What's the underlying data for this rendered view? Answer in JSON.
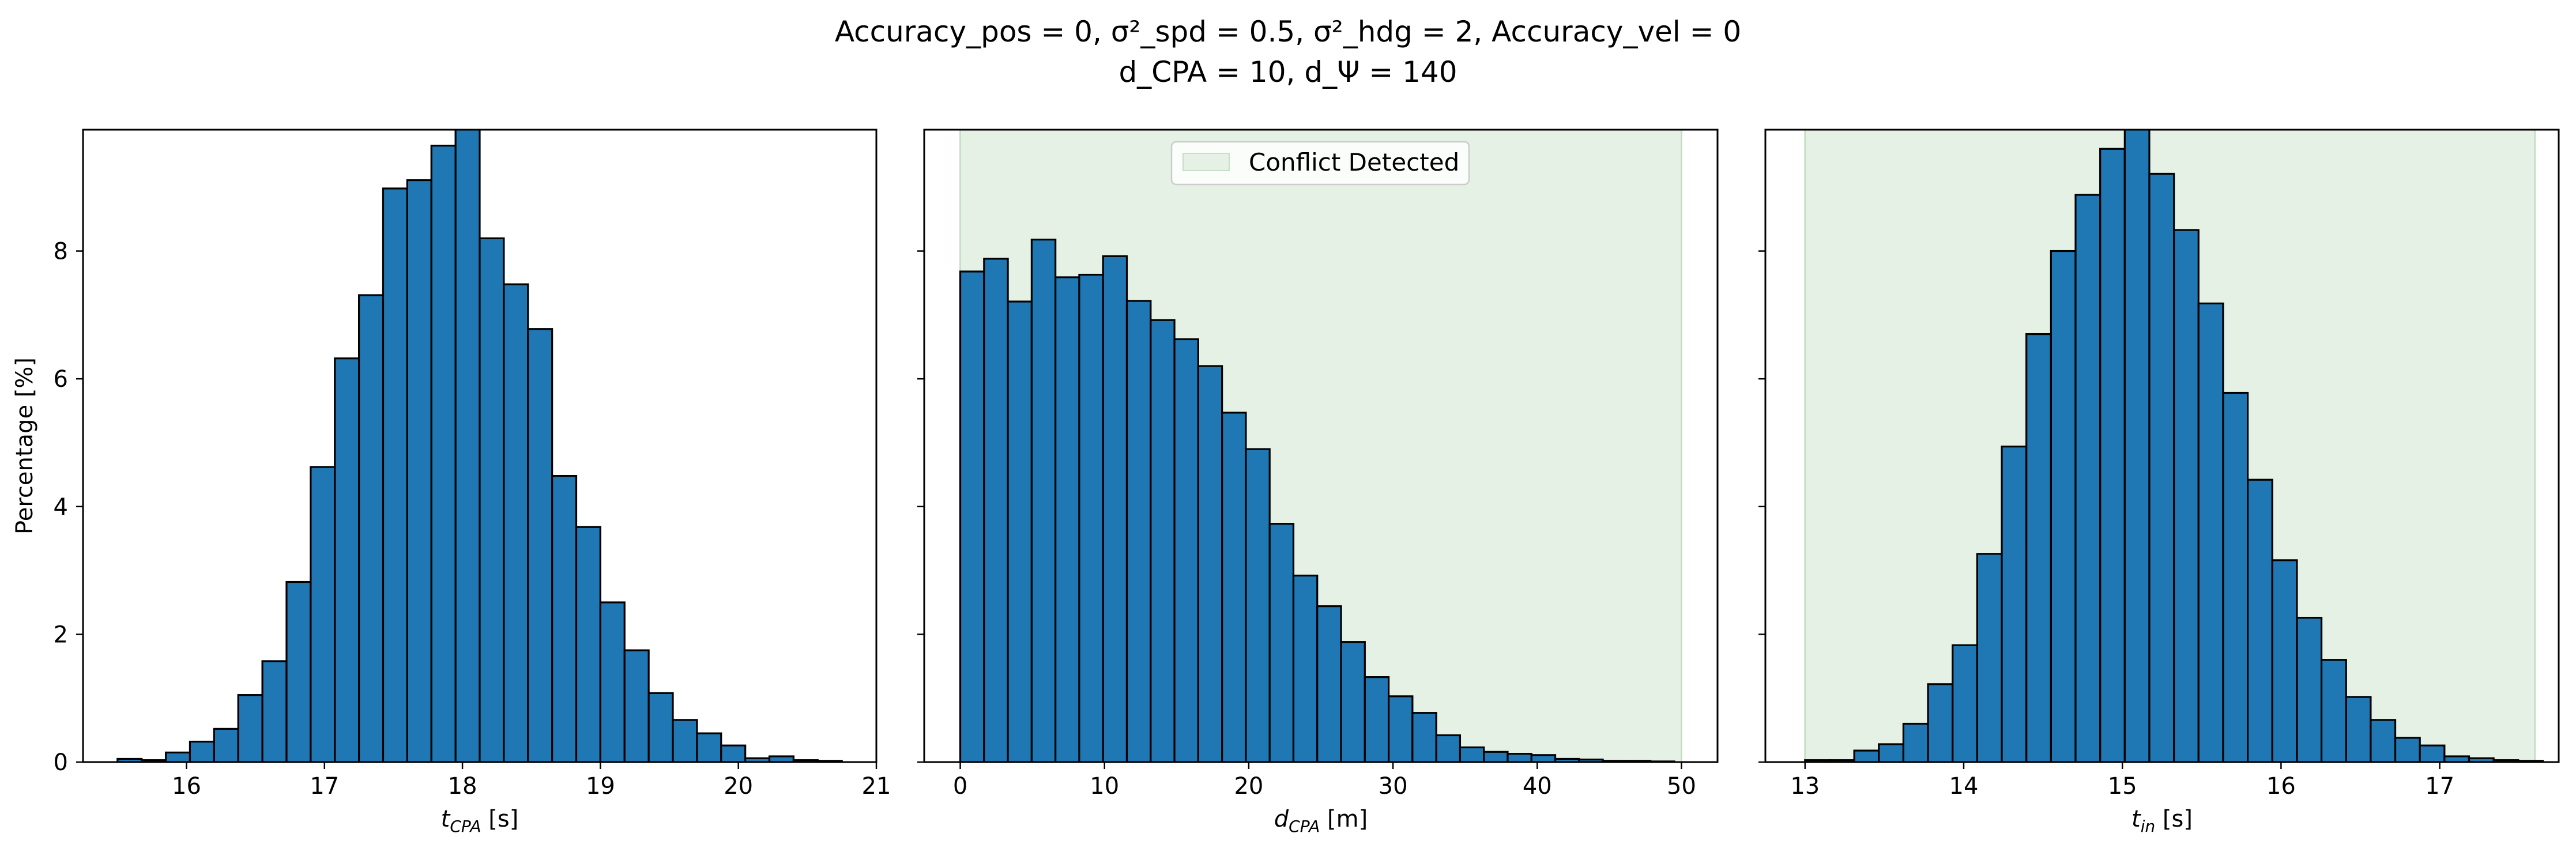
{
  "title": {
    "line1": "Accuracy_pos = 0, σ²_spd = 0.5, σ²_hdg = 2, Accuracy_vel = 0",
    "line2": "d_CPA = 10, d_Ψ = 140"
  },
  "colors": {
    "bar_fill": "#1f77b4",
    "bar_edge": "#000000",
    "conflict_fill": "#e5f1e5",
    "conflict_edge": "#c6dfc6"
  },
  "chart_data": [
    {
      "type": "bar",
      "name": "tcpa-histogram",
      "xlabel_main": "t",
      "xlabel_sub": "CPA",
      "xlabel_unit": " [s]",
      "ylabel": "Percentage [%]",
      "xlim": [
        15.25,
        21.0
      ],
      "ylim": [
        0,
        9.9
      ],
      "xticks": [
        16,
        17,
        18,
        19,
        20,
        21
      ],
      "xtick_labels": [
        "16",
        "17",
        "18",
        "19",
        "20",
        "21"
      ],
      "yticks": [
        0,
        2,
        4,
        6,
        8
      ],
      "ytick_labels": [
        "0",
        "2",
        "4",
        "6",
        "8"
      ],
      "bin_start": 15.5,
      "bin_width": 0.175,
      "values": [
        0.05,
        0.03,
        0.15,
        0.32,
        0.52,
        1.05,
        1.58,
        2.82,
        4.62,
        6.32,
        7.31,
        8.98,
        9.11,
        9.65,
        10.0,
        8.2,
        7.48,
        6.78,
        4.48,
        3.68,
        2.5,
        1.75,
        1.08,
        0.66,
        0.45,
        0.26,
        0.06,
        0.09,
        0.03,
        0.02
      ],
      "conflict_region": null,
      "legend": null
    },
    {
      "type": "bar",
      "name": "dcpa-histogram",
      "xlabel_main": "d",
      "xlabel_sub": "CPA",
      "xlabel_unit": " [m]",
      "ylabel": "",
      "xlim": [
        -2.5,
        52.5
      ],
      "ylim": [
        0,
        9.9
      ],
      "xticks": [
        0,
        10,
        20,
        30,
        40,
        50
      ],
      "xtick_labels": [
        "0",
        "10",
        "20",
        "30",
        "40",
        "50"
      ],
      "yticks": [
        0,
        2,
        4,
        6,
        8
      ],
      "ytick_labels": [],
      "bin_start": 0.0,
      "bin_width": 1.65,
      "values": [
        7.68,
        7.88,
        7.21,
        8.18,
        7.59,
        7.63,
        7.92,
        7.22,
        6.92,
        6.62,
        6.2,
        5.47,
        4.9,
        3.73,
        2.92,
        2.44,
        1.88,
        1.33,
        1.03,
        0.77,
        0.42,
        0.23,
        0.16,
        0.13,
        0.11,
        0.05,
        0.04,
        0.02,
        0.02,
        0.01
      ],
      "conflict_region": [
        0,
        50
      ],
      "legend": "Conflict Detected"
    },
    {
      "type": "bar",
      "name": "tin-histogram",
      "xlabel_main": "t",
      "xlabel_sub": "in",
      "xlabel_unit": " [s]",
      "ylabel": "",
      "xlim": [
        12.75,
        17.75
      ],
      "ylim": [
        0,
        9.9
      ],
      "xticks": [
        13,
        14,
        15,
        16,
        17
      ],
      "xtick_labels": [
        "13",
        "14",
        "15",
        "16",
        "17"
      ],
      "yticks": [
        0,
        2,
        4,
        6,
        8
      ],
      "ytick_labels": [],
      "bin_start": 13.0,
      "bin_width": 0.155,
      "values": [
        0.03,
        0.03,
        0.18,
        0.28,
        0.6,
        1.22,
        1.83,
        3.26,
        4.94,
        6.7,
        8.0,
        8.88,
        9.6,
        10.0,
        9.21,
        8.33,
        7.18,
        5.78,
        4.42,
        3.16,
        2.26,
        1.6,
        1.02,
        0.66,
        0.38,
        0.26,
        0.09,
        0.06,
        0.03,
        0.02
      ],
      "conflict_region": [
        13.0,
        17.6
      ],
      "legend": null
    }
  ]
}
